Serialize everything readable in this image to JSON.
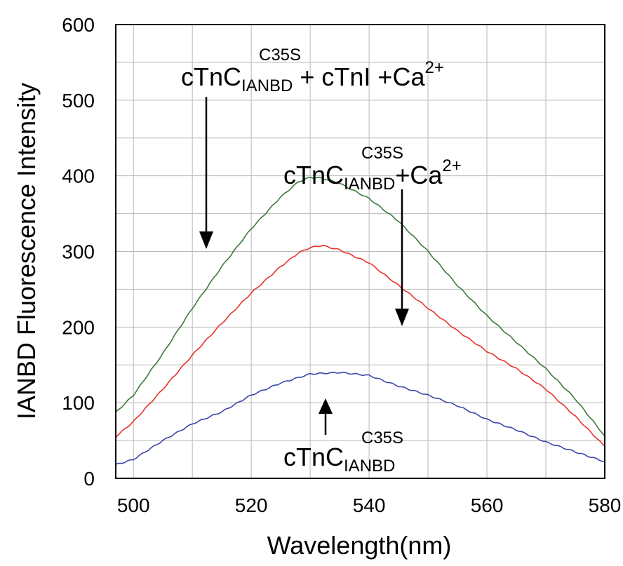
{
  "chart_data": {
    "type": "line",
    "xlabel": "Wavelength(nm)",
    "ylabel": "IANBD Fluorescence Intensity",
    "xlim": [
      497,
      580
    ],
    "ylim": [
      0,
      600
    ],
    "xticks": [
      "500",
      "520",
      "540",
      "560",
      "580"
    ],
    "yticks": [
      "0",
      "100",
      "200",
      "300",
      "400",
      "500",
      "600"
    ],
    "grid": true,
    "series": [
      {
        "color": "#3b7a3b",
        "x": [
          497,
          500,
          505,
          510,
          515,
          520,
          525,
          528,
          530,
          532,
          535,
          540,
          545,
          550,
          555,
          560,
          565,
          570,
          575,
          580
        ],
        "y": [
          87,
          110,
          165,
          225,
          280,
          330,
          372,
          392,
          398,
          397,
          390,
          370,
          340,
          300,
          255,
          215,
          180,
          145,
          105,
          56
        ]
      },
      {
        "color": "#e8332a",
        "x": [
          497,
          500,
          505,
          510,
          515,
          520,
          525,
          528,
          530,
          532,
          535,
          540,
          545,
          550,
          555,
          560,
          565,
          570,
          575,
          580
        ],
        "y": [
          55,
          75,
          118,
          163,
          205,
          245,
          280,
          298,
          305,
          308,
          302,
          285,
          255,
          225,
          195,
          168,
          145,
          118,
          82,
          42
        ]
      },
      {
        "color": "#3a47a8",
        "x": [
          497,
          500,
          505,
          510,
          515,
          520,
          525,
          530,
          535,
          540,
          545,
          550,
          555,
          560,
          565,
          570,
          575,
          580
        ],
        "y": [
          18,
          25,
          50,
          72,
          88,
          110,
          126,
          138,
          140,
          136,
          122,
          110,
          96,
          78,
          64,
          48,
          35,
          22
        ]
      }
    ],
    "annotations": [
      {
        "base": "cTnC",
        "sup": "C35S",
        "sub": "IANBD",
        "rest": " + cTnI +Ca",
        "rest_sup": "2+"
      },
      {
        "base": "cTnC",
        "sup": "C35S",
        "sub": "IANBD",
        "rest": "+Ca",
        "rest_sup": "2+"
      },
      {
        "base": "cTnC",
        "sup": "C35S",
        "sub": "IANBD",
        "rest": "",
        "rest_sup": ""
      }
    ]
  }
}
